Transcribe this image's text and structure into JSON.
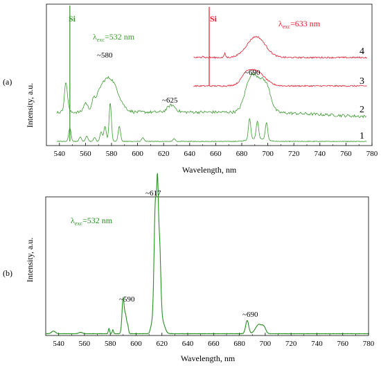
{
  "chart_data": [
    {
      "panel": "(a)",
      "type": "line",
      "xlabel": "Wavelength, nm",
      "ylabel": "Intensity, a.u.",
      "xlim": [
        530,
        780
      ],
      "xticks": [
        540,
        560,
        580,
        600,
        620,
        640,
        660,
        680,
        700,
        720,
        740,
        760,
        780
      ],
      "colors": {
        "green": "#3a9a2e",
        "red": "#e8192c"
      },
      "annotations": {
        "si_green": "Si",
        "si_red": "Si",
        "exc_green_pre": "λ",
        "exc_green_sub": "exc",
        "exc_green_post": "=532 nm",
        "exc_red_pre": "λ",
        "exc_red_sub": "exc",
        "exc_red_post": "=633 nm",
        "p580": "~580",
        "p625": "~625",
        "p690": "~690"
      },
      "series": [
        {
          "name": "1",
          "x_range": [
            538,
            776
          ],
          "sharp_peaks": [
            548,
            556,
            561,
            567,
            572,
            575,
            579,
            586,
            604,
            628,
            686,
            692,
            699
          ],
          "peak_intensity": [
            0.35,
            0.12,
            0.14,
            0.1,
            0.25,
            0.4,
            1.0,
            0.4,
            0.1,
            0.07,
            0.55,
            0.45,
            0.45
          ]
        },
        {
          "name": "2",
          "x_range": [
            538,
            776
          ],
          "broad_peaks": [
            580,
            625,
            690
          ],
          "sharp_peaks": [
            545,
            548,
            560,
            566
          ],
          "peak_intensity": [
            0.6,
            0.12,
            0.6
          ]
        },
        {
          "name": "3",
          "x_range": [
            643,
            776
          ],
          "broad_peaks": [
            691
          ],
          "laser_line": 655,
          "peak_intensity": [
            0.5
          ]
        },
        {
          "name": "4",
          "x_range": [
            643,
            776
          ],
          "broad_peaks": [
            691
          ],
          "sharp_peaks": [
            667
          ],
          "peak_intensity": [
            0.6
          ]
        }
      ],
      "laser_lines": {
        "green": 548,
        "red": 655
      }
    },
    {
      "panel": "(b)",
      "type": "line",
      "xlabel": "Wavelength, nm",
      "ylabel": "Intensity, a.u.",
      "xlim": [
        530,
        780
      ],
      "xticks": [
        540,
        560,
        580,
        600,
        620,
        640,
        660,
        680,
        700,
        720,
        740,
        760,
        780
      ],
      "color": "#25901f",
      "annotations": {
        "exc_pre": "λ",
        "exc_sub": "exc",
        "exc_post": "=532 nm",
        "p617": "~617",
        "p590": "~590",
        "p690": "~690"
      },
      "series": [
        {
          "name": "",
          "x_range": [
            530,
            780
          ],
          "peaks": [
            {
              "x": 536,
              "h": 0.02,
              "w": 1.5
            },
            {
              "x": 557,
              "h": 0.01,
              "w": 1.5
            },
            {
              "x": 579,
              "h": 0.04,
              "w": 0.5
            },
            {
              "x": 582,
              "h": 0.03,
              "w": 0.5
            },
            {
              "x": 590,
              "h": 0.27,
              "w": 0.9
            },
            {
              "x": 592,
              "h": 0.12,
              "w": 0.7
            },
            {
              "x": 593.5,
              "h": 0.06,
              "w": 0.6
            },
            {
              "x": 612,
              "h": 0.06,
              "w": 1.0
            },
            {
              "x": 615,
              "h": 1.0,
              "w": 1.1
            },
            {
              "x": 616.6,
              "h": 0.6,
              "w": 0.6
            },
            {
              "x": 618,
              "h": 0.65,
              "w": 1.0
            },
            {
              "x": 620,
              "h": 0.1,
              "w": 2.0
            },
            {
              "x": 686,
              "h": 0.1,
              "w": 1.2
            },
            {
              "x": 695,
              "h": 0.07,
              "w": 2.5
            },
            {
              "x": 699,
              "h": 0.04,
              "w": 1.5
            }
          ]
        }
      ]
    }
  ]
}
